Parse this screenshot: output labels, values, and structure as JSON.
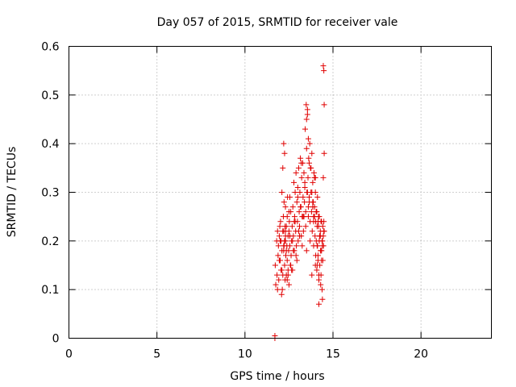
{
  "chart_data": {
    "type": "scatter",
    "title": "Day 057 of 2015, SRMTID for receiver vale",
    "xlabel": "GPS time / hours",
    "ylabel": "SRMTID / TECUs",
    "xlim": [
      0,
      24
    ],
    "ylim": [
      0,
      0.6
    ],
    "xticks": [
      0,
      5,
      10,
      15,
      20
    ],
    "yticks": [
      0,
      0.1,
      0.2,
      0.3,
      0.4,
      0.5,
      0.6
    ],
    "ytick_labels": [
      "0",
      "0.1",
      "0.2",
      "0.3",
      "0.4",
      "0.5",
      "0.6"
    ],
    "grid": true,
    "marker": "plus",
    "color": "#e00000",
    "series": [
      {
        "name": "SRMTID",
        "x": [
          11.7,
          11.7,
          11.72,
          11.75,
          11.8,
          11.82,
          11.85,
          11.88,
          11.9,
          11.92,
          11.95,
          11.98,
          12.0,
          12.02,
          12.05,
          12.05,
          12.08,
          12.1,
          12.1,
          12.12,
          12.15,
          12.15,
          12.18,
          12.2,
          12.2,
          12.22,
          12.25,
          12.25,
          12.28,
          12.3,
          12.3,
          12.32,
          12.35,
          12.35,
          12.38,
          12.4,
          12.4,
          12.42,
          12.45,
          12.45,
          12.48,
          12.5,
          12.5,
          12.52,
          12.55,
          12.55,
          12.58,
          12.6,
          12.62,
          12.65,
          12.68,
          12.7,
          12.72,
          12.75,
          12.78,
          12.8,
          12.82,
          12.85,
          12.88,
          12.9,
          12.92,
          12.95,
          12.98,
          13.0,
          13.02,
          13.05,
          13.08,
          13.1,
          13.12,
          13.15,
          13.18,
          13.2,
          13.22,
          13.25,
          13.28,
          13.3,
          13.32,
          13.35,
          13.38,
          13.4,
          13.42,
          13.45,
          13.48,
          13.5,
          13.52,
          13.55,
          13.58,
          13.6,
          13.62,
          13.65,
          13.68,
          13.7,
          13.72,
          13.75,
          13.78,
          13.8,
          13.82,
          13.85,
          13.88,
          13.9,
          13.92,
          13.95,
          13.98,
          14.0,
          14.02,
          14.05,
          14.08,
          14.1,
          14.12,
          14.15,
          14.18,
          14.2,
          14.22,
          14.25,
          14.28,
          14.3,
          14.32,
          14.35,
          14.38,
          14.4,
          14.42,
          14.45,
          14.48,
          14.5,
          14.5,
          14.45,
          14.48,
          14.4,
          14.3,
          14.2,
          14.1,
          14.0,
          13.9,
          13.8,
          13.7,
          13.6,
          13.5,
          13.4,
          13.3,
          13.2,
          13.1,
          13.0,
          12.9,
          12.8,
          12.7,
          12.6,
          12.5,
          12.4,
          12.3,
          12.2,
          12.1,
          12.0,
          11.95,
          11.85,
          12.15,
          12.25,
          12.35,
          12.45,
          12.55,
          12.65,
          12.75,
          12.85,
          12.95,
          13.05,
          13.15,
          13.25,
          13.35,
          13.45,
          13.55,
          13.65,
          13.75,
          13.85,
          13.95,
          14.05,
          14.15,
          14.25,
          14.35,
          13.5,
          13.55,
          13.6,
          13.65,
          14.5,
          14.45,
          14.48,
          14.4,
          14.35,
          14.3,
          14.25,
          14.2,
          14.15,
          14.1,
          14.05,
          12.2,
          12.22,
          12.25,
          12.28,
          12.3,
          13.8,
          13.85,
          13.9,
          13.95,
          14.0,
          14.02,
          14.08,
          14.12,
          14.18,
          14.22,
          14.28,
          14.32,
          14.38,
          14.42,
          14.46
        ],
        "y": [
          0.0,
          0.005,
          0.15,
          0.11,
          0.2,
          0.13,
          0.22,
          0.17,
          0.19,
          0.12,
          0.21,
          0.23,
          0.16,
          0.24,
          0.14,
          0.2,
          0.09,
          0.18,
          0.3,
          0.1,
          0.22,
          0.35,
          0.25,
          0.4,
          0.19,
          0.28,
          0.38,
          0.15,
          0.12,
          0.2,
          0.27,
          0.17,
          0.13,
          0.23,
          0.19,
          0.25,
          0.16,
          0.29,
          0.21,
          0.14,
          0.18,
          0.22,
          0.11,
          0.24,
          0.19,
          0.29,
          0.15,
          0.26,
          0.17,
          0.2,
          0.23,
          0.14,
          0.27,
          0.21,
          0.32,
          0.18,
          0.25,
          0.3,
          0.22,
          0.34,
          0.19,
          0.28,
          0.24,
          0.31,
          0.2,
          0.35,
          0.26,
          0.23,
          0.3,
          0.37,
          0.27,
          0.21,
          0.33,
          0.25,
          0.36,
          0.29,
          0.22,
          0.34,
          0.28,
          0.31,
          0.43,
          0.26,
          0.48,
          0.39,
          0.3,
          0.46,
          0.33,
          0.25,
          0.37,
          0.29,
          0.4,
          0.24,
          0.35,
          0.3,
          0.26,
          0.38,
          0.22,
          0.32,
          0.28,
          0.19,
          0.34,
          0.25,
          0.21,
          0.3,
          0.17,
          0.26,
          0.14,
          0.23,
          0.19,
          0.16,
          0.25,
          0.12,
          0.2,
          0.15,
          0.22,
          0.18,
          0.13,
          0.24,
          0.1,
          0.2,
          0.16,
          0.56,
          0.55,
          0.48,
          0.38,
          0.33,
          0.22,
          0.08,
          0.11,
          0.07,
          0.19,
          0.15,
          0.24,
          0.13,
          0.2,
          0.27,
          0.18,
          0.32,
          0.25,
          0.36,
          0.21,
          0.29,
          0.17,
          0.24,
          0.2,
          0.15,
          0.26,
          0.12,
          0.22,
          0.18,
          0.14,
          0.2,
          0.16,
          0.1,
          0.13,
          0.2,
          0.18,
          0.13,
          0.21,
          0.14,
          0.18,
          0.24,
          0.16,
          0.22,
          0.27,
          0.19,
          0.25,
          0.23,
          0.3,
          0.28,
          0.35,
          0.27,
          0.33,
          0.26,
          0.24,
          0.21,
          0.18,
          0.45,
          0.47,
          0.41,
          0.36,
          0.22,
          0.21,
          0.24,
          0.19,
          0.16,
          0.18,
          0.21,
          0.13,
          0.17,
          0.15,
          0.2,
          0.22,
          0.19,
          0.2,
          0.23,
          0.21,
          0.3,
          0.28,
          0.25,
          0.27,
          0.33,
          0.24,
          0.26,
          0.29,
          0.23,
          0.25,
          0.21,
          0.24,
          0.2,
          0.23,
          0.19
        ]
      }
    ]
  }
}
